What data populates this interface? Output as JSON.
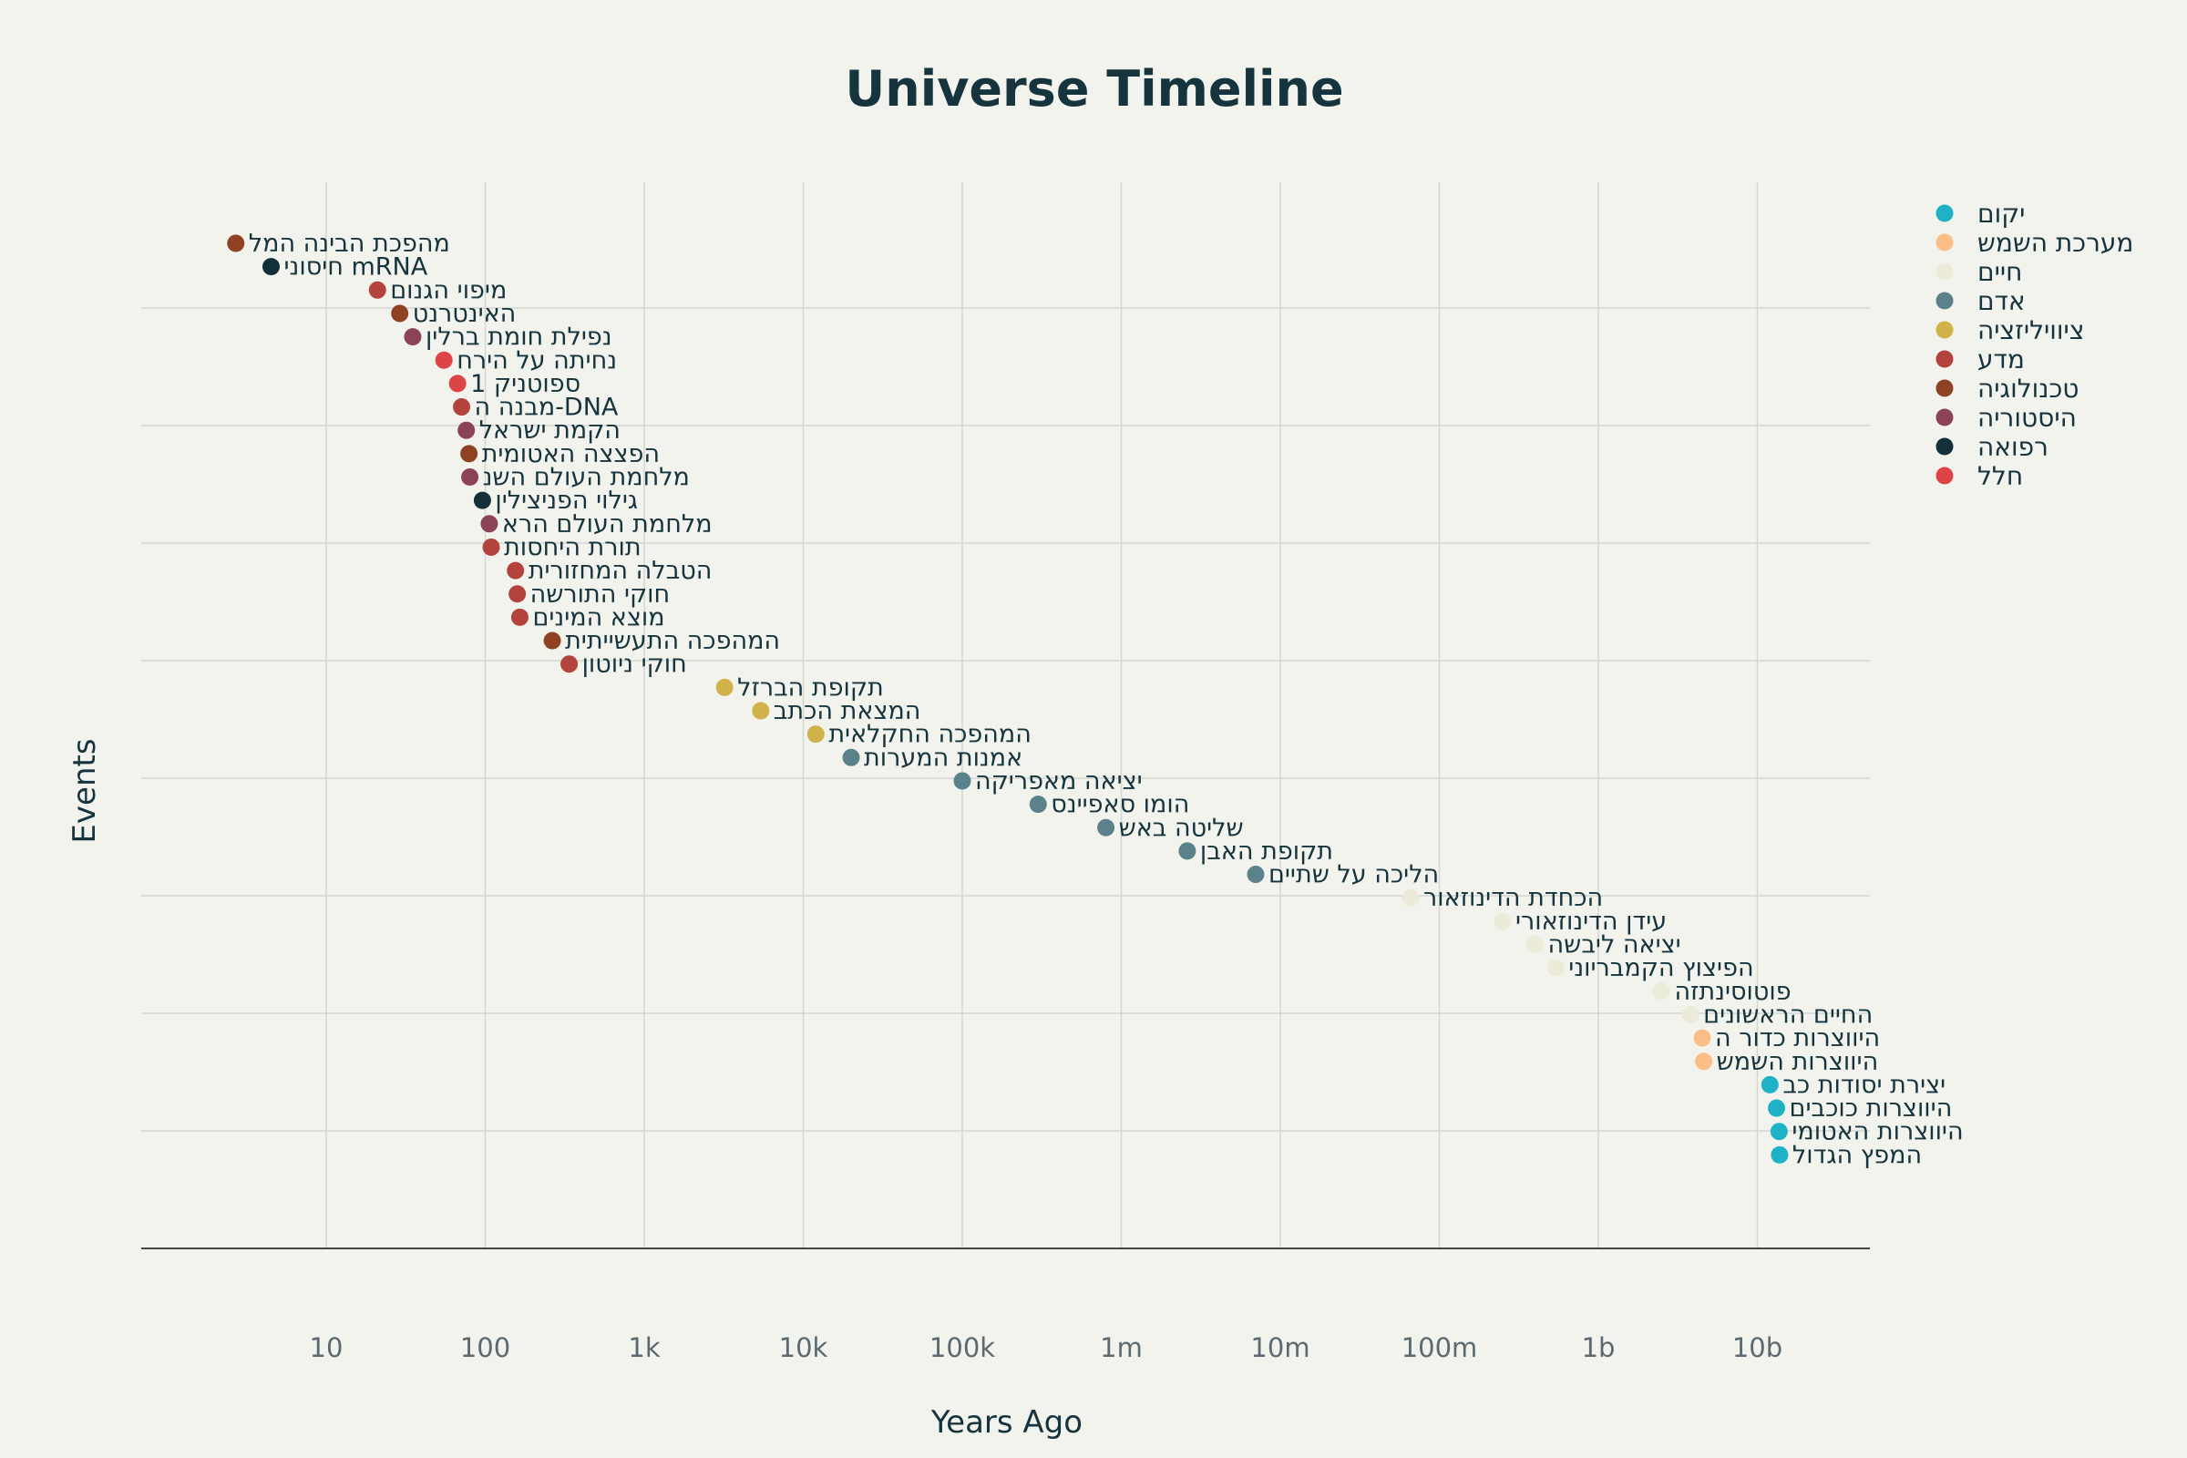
{
  "chart_data": {
    "type": "scatter",
    "title": "Universe Timeline",
    "xlabel": "Years Ago",
    "ylabel": "Events",
    "x_scale": "log",
    "xlim": [
      1,
      60000000000
    ],
    "x_ticks": [
      {
        "value": 10,
        "label": "10"
      },
      {
        "value": 100,
        "label": "100"
      },
      {
        "value": 1000,
        "label": "1k"
      },
      {
        "value": 10000,
        "label": "10k"
      },
      {
        "value": 100000,
        "label": "100k"
      },
      {
        "value": 1000000,
        "label": "1m"
      },
      {
        "value": 10000000,
        "label": "10m"
      },
      {
        "value": 100000000,
        "label": "100m"
      },
      {
        "value": 1000000000,
        "label": "1b"
      },
      {
        "value": 10000000000,
        "label": "10b"
      }
    ],
    "grid": true,
    "legend_position": "right",
    "categories": [
      {
        "name": "יקום",
        "color": "#1fb2c6"
      },
      {
        "name": "מערכת השמש",
        "color": "#fbbe86"
      },
      {
        "name": "חיים",
        "color": "#ecebd9"
      },
      {
        "name": "אדם",
        "color": "#5b828b"
      },
      {
        "name": "ציוויליזציה",
        "color": "#d1b24a"
      },
      {
        "name": "מדע",
        "color": "#b3433c"
      },
      {
        "name": "טכנולוגיה",
        "color": "#8f4223"
      },
      {
        "name": "היסטוריה",
        "color": "#8c4358"
      },
      {
        "name": "רפואה",
        "color": "#13303a"
      },
      {
        "name": "חלל",
        "color": "#dc4446"
      }
    ],
    "events": [
      {
        "label": "מהפכת הבינה המל",
        "x": 2.7,
        "category": "טכנולוגיה"
      },
      {
        "label": "חיסוני mRNA",
        "x": 4.5,
        "category": "רפואה"
      },
      {
        "label": "מיפוי הגנום",
        "x": 21,
        "category": "מדע"
      },
      {
        "label": "האינטרנט",
        "x": 29,
        "category": "טכנולוגיה"
      },
      {
        "label": "נפילת חומת ברלין",
        "x": 35,
        "category": "היסטוריה"
      },
      {
        "label": "נחיתה על הירח",
        "x": 55,
        "category": "חלל"
      },
      {
        "label": "ספוטניק 1",
        "x": 67,
        "category": "חלל"
      },
      {
        "label": "מבנה ה-DNA",
        "x": 71,
        "category": "מדע"
      },
      {
        "label": "הקמת ישראל",
        "x": 76,
        "category": "היסטוריה"
      },
      {
        "label": "הפצצה האטומית",
        "x": 79,
        "category": "טכנולוגיה"
      },
      {
        "label": "מלחמת העולם השנ",
        "x": 80,
        "category": "היסטוריה"
      },
      {
        "label": "גילוי הפניצילין",
        "x": 96,
        "category": "רפואה"
      },
      {
        "label": "מלחמת העולם הרא",
        "x": 106,
        "category": "היסטוריה"
      },
      {
        "label": "תורת היחסות",
        "x": 109,
        "category": "מדע"
      },
      {
        "label": "הטבלה המחזורית",
        "x": 155,
        "category": "מדע"
      },
      {
        "label": "חוקי התורשה",
        "x": 159,
        "category": "מדע"
      },
      {
        "label": "מוצא המינים",
        "x": 165,
        "category": "מדע"
      },
      {
        "label": "המהפכה התעשייתית",
        "x": 264,
        "category": "טכנולוגיה"
      },
      {
        "label": "חוקי ניוטון",
        "x": 337,
        "category": "מדע"
      },
      {
        "label": "תקופת הברזל",
        "x": 3200,
        "category": "ציוויליזציה"
      },
      {
        "label": "המצאת הכתב",
        "x": 5400,
        "category": "ציוויליזציה"
      },
      {
        "label": "המהפכה החקלאית",
        "x": 12000,
        "category": "ציוויליזציה"
      },
      {
        "label": "אמנות המערות",
        "x": 20000,
        "category": "אדם"
      },
      {
        "label": "יציאה מאפריקה",
        "x": 100000,
        "category": "אדם"
      },
      {
        "label": "הומו סאפיינס",
        "x": 300000,
        "category": "אדם"
      },
      {
        "label": "שליטה באש",
        "x": 800000,
        "category": "אדם"
      },
      {
        "label": "תקופת האבן",
        "x": 2600000,
        "category": "אדם"
      },
      {
        "label": "הליכה על שתיים",
        "x": 7000000,
        "category": "אדם"
      },
      {
        "label": "הכחדת הדינוזאור",
        "x": 66000000,
        "category": "חיים"
      },
      {
        "label": "עידן הדינוזאורי",
        "x": 250000000,
        "category": "חיים"
      },
      {
        "label": "יציאה ליבשה",
        "x": 400000000,
        "category": "חיים"
      },
      {
        "label": "הפיצוץ הקמבריוני",
        "x": 540000000,
        "category": "חיים"
      },
      {
        "label": "פוטוסינתזה",
        "x": 2500000000,
        "category": "חיים"
      },
      {
        "label": "החיים הראשונים",
        "x": 3800000000,
        "category": "חיים"
      },
      {
        "label": "היווצרות כדור ה",
        "x": 4500000000,
        "category": "מערכת השמש"
      },
      {
        "label": "היווצרות השמש",
        "x": 4600000000,
        "category": "מערכת השמש"
      },
      {
        "label": "יצירת יסודות כב",
        "x": 12000000000,
        "category": "יקום"
      },
      {
        "label": "היווצרות כוכבים",
        "x": 13200000000,
        "category": "יקום"
      },
      {
        "label": "היווצרות האטומי",
        "x": 13700000000,
        "category": "יקום"
      },
      {
        "label": "המפץ הגדול",
        "x": 13800000000,
        "category": "יקום"
      }
    ]
  }
}
